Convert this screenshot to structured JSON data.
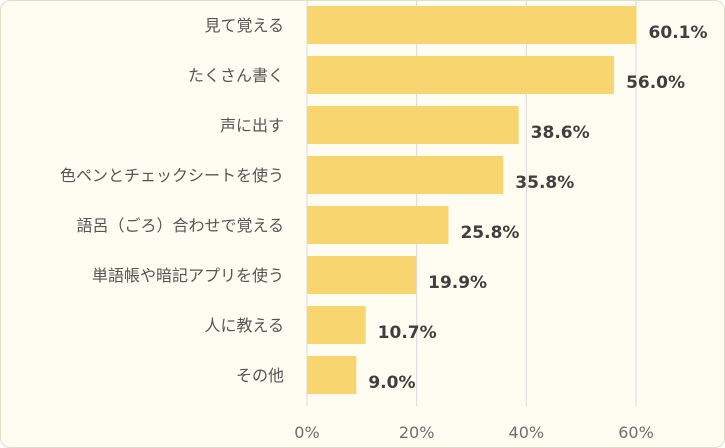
{
  "chart_data": {
    "type": "bar",
    "orientation": "horizontal",
    "categories": [
      "見て覚える",
      "たくさん書く",
      "声に出す",
      "色ペンとチェックシートを使う",
      "語呂（ごろ）合わせで覚える",
      "単語帳や暗記アプリを使う",
      "人に教える",
      "その他"
    ],
    "values": [
      60.1,
      56.0,
      38.6,
      35.8,
      25.8,
      19.9,
      10.7,
      9.0
    ],
    "value_labels": [
      "60.1%",
      "56.0%",
      "38.6%",
      "35.8%",
      "25.8%",
      "19.9%",
      "10.7%",
      "9.0%"
    ],
    "x_ticks": [
      0,
      20,
      40,
      60
    ],
    "x_tick_labels": [
      "0%",
      "20%",
      "40%",
      "60%"
    ],
    "xlim": [
      0,
      60
    ],
    "grid": true,
    "legend": "none",
    "colors": {
      "bar": "#f8d56e",
      "background": "#fffdf1",
      "grid": "#d9d9d9"
    }
  }
}
